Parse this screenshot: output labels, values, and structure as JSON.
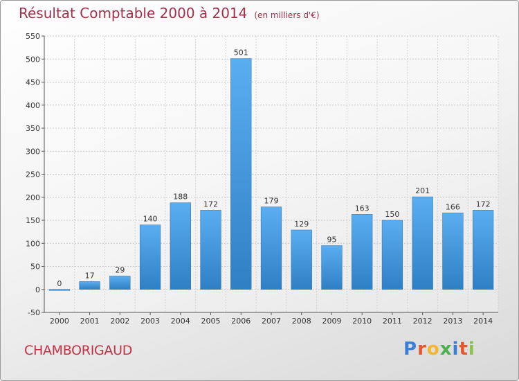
{
  "chart_data": {
    "type": "bar",
    "title": "Résultat Comptable 2000 à 2014",
    "subtitle": "(en milliers d'€)",
    "categories": [
      "2000",
      "2001",
      "2002",
      "2003",
      "2004",
      "2005",
      "2006",
      "2007",
      "2008",
      "2009",
      "2010",
      "2011",
      "2012",
      "2013",
      "2014"
    ],
    "values": [
      0,
      17,
      29,
      140,
      188,
      172,
      501,
      179,
      129,
      95,
      163,
      150,
      201,
      166,
      172
    ],
    "ylim": [
      -50,
      550
    ],
    "yticks": [
      -50,
      0,
      50,
      100,
      150,
      200,
      250,
      300,
      350,
      400,
      450,
      500,
      550
    ],
    "grid": true,
    "xlabel": "",
    "ylabel": "",
    "bar_color": "#4a9fe0",
    "title_color": "#a0304a"
  },
  "footer": {
    "town": "CHAMBORIGAUD",
    "logo_letters": [
      "P",
      "r",
      "o",
      "x",
      "i",
      "t",
      "i"
    ],
    "logo_colors": [
      "#3b7fd4",
      "#e4572e",
      "#f2b632",
      "#4caf50",
      "#3b7fd4",
      "#e4572e",
      "#8bc34a"
    ]
  }
}
